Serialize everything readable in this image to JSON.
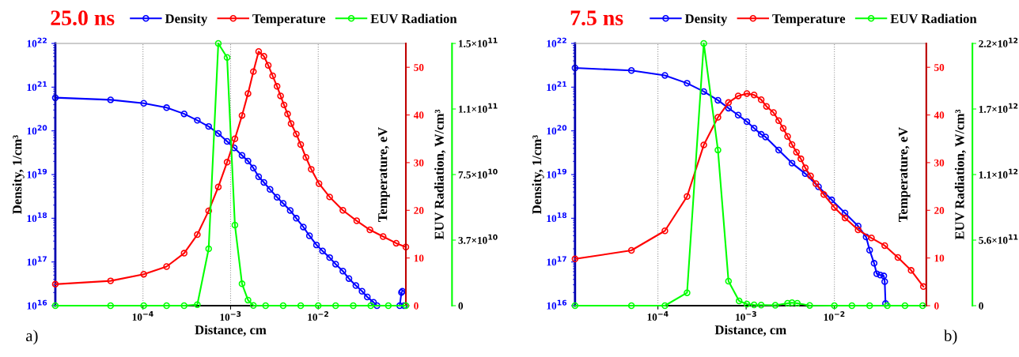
{
  "chart_data": [
    {
      "type": "line",
      "title": "25.0 ns",
      "xlabel": "Distance, cm",
      "ylabel": "Density, 1/cm³",
      "y2label": "Temperature, eV",
      "y3label": "EUV Radiation, W/cm³",
      "log": "xy",
      "grid": "x",
      "legend": "top",
      "marker": "circle",
      "line_style": "solid",
      "xlim": [
        1e-05,
        0.1
      ],
      "xticks": [
        {
          "value": 0.0001,
          "label": "10$^{−4}$"
        },
        {
          "value": 0.001,
          "label": "10$^{−3}$"
        },
        {
          "value": 0.01,
          "label": "10$^{−2}$"
        }
      ],
      "ylim": [
        1e+16,
        1e+22
      ],
      "yticks": [
        {
          "value": 1e+16,
          "label": "10$^{16}$"
        },
        {
          "value": 1e+17,
          "label": "10$^{17}$"
        },
        {
          "value": 1e+18,
          "label": "10$^{18}$"
        },
        {
          "value": 1e+19,
          "label": "10$^{19}$"
        },
        {
          "value": 1e+20,
          "label": "10$^{20}$"
        },
        {
          "value": 1e+21,
          "label": "10$^{21}$"
        },
        {
          "value": 1e+22,
          "label": "10$^{22}$"
        }
      ],
      "y2lim": [
        0,
        55
      ],
      "y2ticks": [
        0,
        10,
        20,
        30,
        40,
        50
      ],
      "y3lim": [
        0,
        150000000000.0
      ],
      "y3ticks": [
        0,
        {
          "value": 37500000000.0,
          "label": "3.7×10$^{10}$"
        },
        {
          "value": 75000000000.0,
          "label": "7.5×10$^{10}$"
        },
        {
          "value": 112500000000.0,
          "label": "1.1×10$^{11}$"
        },
        {
          "value": 150000000000.0,
          "label": "1.5×10$^{11}$"
        }
      ],
      "annotations": [
        "a)"
      ],
      "series": [
        {
          "name": "Density",
          "color": "#0000ff",
          "axis": "y",
          "x": [
            1e-05,
            4.27e-05,
            0.000102,
            0.000186,
            0.000295,
            0.000417,
            0.000562,
            0.000724,
            0.000912,
            0.0011,
            0.00135,
            0.00158,
            0.00182,
            0.00209,
            0.0024,
            0.00282,
            0.00339,
            0.00398,
            0.00479,
            0.00562,
            0.00676,
            0.00794,
            0.00955,
            0.0112,
            0.0135,
            0.0158,
            0.0191,
            0.0224,
            0.0269,
            0.0316,
            0.0363,
            0.0427,
            0.0468,
            0.0631,
            0.0851,
            0.0891,
            0.0912,
            0.0933,
            0.0955
          ],
          "values": [
            5.75e+20,
            5.13e+20,
            4.27e+20,
            3.39e+20,
            2.45e+20,
            1.74e+20,
            1.26e+20,
            8.71e+19,
            5.75e+19,
            4.07e+19,
            2.75e+19,
            2.04e+19,
            1.41e+19,
            8.91e+18,
            6.61e+18,
            4.57e+18,
            3.02e+18,
            2.19e+18,
            1.51e+18,
            1e+18,
            6.31e+17,
            3.98e+17,
            2.45e+17,
            1.78e+17,
            1.26e+17,
            8.91e+16,
            6.17e+16,
            4.17e+16,
            2.88e+16,
            2.14e+16,
            1.58e+16,
            1.2e+16,
            1e+16,
            null,
            1e+16,
            2e+16,
            2.14e+16,
            null,
            1e+16
          ]
        },
        {
          "name": "Temperature",
          "color": "#ff0000",
          "axis": "y2",
          "x": [
            1e-05,
            4.27e-05,
            0.000102,
            0.000186,
            0.000295,
            0.000417,
            0.000562,
            0.000724,
            0.000912,
            0.00112,
            0.00135,
            0.00158,
            0.00182,
            0.00209,
            0.0024,
            0.00269,
            0.00302,
            0.00339,
            0.00372,
            0.00407,
            0.00447,
            0.0049,
            0.00562,
            0.00631,
            0.00724,
            0.00832,
            0.0102,
            0.0135,
            0.0191,
            0.0275,
            0.0389,
            0.055,
            0.0776,
            0.1
          ],
          "values": [
            4.5,
            5.2,
            6.6,
            8.2,
            11.0,
            14.9,
            19.9,
            24.9,
            30.1,
            35.0,
            39.9,
            44.5,
            49.1,
            53.3,
            52.3,
            50.4,
            48.2,
            46.0,
            44.0,
            42.1,
            40.2,
            38.2,
            36.0,
            33.8,
            31.1,
            28.6,
            25.6,
            22.8,
            20.0,
            17.8,
            15.9,
            14.5,
            13.1,
            12.3
          ]
        },
        {
          "name": "EUV Radiation",
          "color": "#00ff00",
          "axis": "y3",
          "x": [
            1e-05,
            4.27e-05,
            0.000102,
            0.000186,
            0.000295,
            0.000417,
            0.000562,
            0.000724,
            0.000912,
            0.00112,
            0.00135,
            0.00158,
            0.00182,
            0.00251,
            0.00398,
            0.00631,
            0.01,
            0.0158,
            0.0251,
            0.0398,
            0.0631,
            0.1
          ],
          "values": [
            0,
            0,
            0,
            0,
            0,
            600000000.0,
            32500000000.0,
            150000000000.0,
            142000000000.0,
            46100000000.0,
            12500000000.0,
            3200000000.0,
            100000000.0,
            0,
            0,
            0,
            0,
            0,
            0,
            0,
            0,
            0
          ]
        }
      ]
    },
    {
      "type": "line",
      "title": "7.5 ns",
      "xlabel": "Distance, cm",
      "ylabel": "Density, 1/cm³",
      "y2label": "Temperature, eV",
      "y3label": "EUV Radiation, W/cm³",
      "log": "xy",
      "grid": "x",
      "legend": "top",
      "marker": "circle",
      "line_style": "solid",
      "xlim": [
        1.15e-05,
        0.11
      ],
      "xticks": [
        {
          "value": 0.0001,
          "label": "10$^{−4}$"
        },
        {
          "value": 0.001,
          "label": "10$^{−3}$"
        },
        {
          "value": 0.01,
          "label": "10$^{−2}$"
        }
      ],
      "ylim": [
        1e+16,
        1e+22
      ],
      "yticks": [
        {
          "value": 1e+16,
          "label": "10$^{16}$"
        },
        {
          "value": 1e+17,
          "label": "10$^{17}$"
        },
        {
          "value": 1e+18,
          "label": "10$^{18}$"
        },
        {
          "value": 1e+19,
          "label": "10$^{19}$"
        },
        {
          "value": 1e+20,
          "label": "10$^{20}$"
        },
        {
          "value": 1e+21,
          "label": "10$^{21}$"
        },
        {
          "value": 1e+22,
          "label": "10$^{22}$"
        }
      ],
      "y2lim": [
        0,
        55
      ],
      "y2ticks": [
        0,
        10,
        20,
        30,
        40,
        50
      ],
      "y3lim": [
        0,
        2240000000000.0
      ],
      "y3ticks": [
        0,
        {
          "value": 560000000000.0,
          "label": "5.6×10$^{11}$"
        },
        {
          "value": 1120000000000.0,
          "label": "1.1×10$^{12}$"
        },
        {
          "value": 1680000000000.0,
          "label": "1.7×10$^{12}$"
        },
        {
          "value": 2240000000000.0,
          "label": "2.2×10$^{12}$"
        }
      ],
      "annotations": [
        "b)"
      ],
      "series": [
        {
          "name": "Density",
          "color": "#0000ff",
          "axis": "y",
          "x": [
            1.15e-05,
            5.01e-05,
            0.00012,
            0.000214,
            0.000331,
            0.000479,
            0.000631,
            0.000813,
            0.00102,
            0.00123,
            0.00148,
            0.00166,
            0.00234,
            0.00331,
            0.00468,
            0.00661,
            0.00933,
            0.0132,
            0.0186,
            0.0229,
            0.0251,
            0.0282,
            0.0302,
            0.0331,
            0.0363,
            0.0372,
            0.038
          ],
          "values": [
            2.75e+21,
            2.4e+21,
            1.86e+21,
            1.23e+21,
            7.94e+20,
            5.01e+20,
            3.31e+20,
            2.29e+20,
            1.62e+20,
            1.15e+20,
            8.32e+19,
            7.24e+19,
            3.63e+19,
            1.82e+19,
            1.05e+19,
            5.25e+18,
            2.63e+18,
            1.32e+18,
            6.61e+17,
            3.72e+17,
            1.86e+17,
            9.33e+16,
            5.37e+16,
            5.01e+16,
            4.79e+16,
            3.55e+16,
            1.12e+16
          ]
        },
        {
          "name": "Temperature",
          "color": "#ff0000",
          "axis": "y2",
          "x": [
            1.15e-05,
            5.01e-05,
            0.00012,
            0.000214,
            0.000331,
            0.000479,
            0.000631,
            0.000813,
            0.00102,
            0.00123,
            0.00148,
            0.0017,
            0.00204,
            0.00234,
            0.00263,
            0.00295,
            0.00331,
            0.00372,
            0.00417,
            0.00468,
            0.00537,
            0.00617,
            0.00759,
            0.01,
            0.0132,
            0.0186,
            0.0263,
            0.0372,
            0.0525,
            0.0741,
            0.102
          ],
          "values": [
            9.8,
            11.6,
            15.7,
            22.9,
            33.7,
            39.5,
            42.6,
            44.0,
            44.5,
            44.2,
            43.2,
            41.8,
            40.5,
            38.8,
            37.2,
            35.5,
            33.8,
            32.2,
            30.8,
            28.9,
            27.2,
            25.6,
            23.3,
            20.6,
            18.4,
            15.9,
            14.2,
            12.6,
            10.1,
            7.4,
            4.0
          ]
        },
        {
          "name": "EUV Radiation",
          "color": "#00ff00",
          "axis": "y3",
          "x": [
            1.15e-05,
            5.01e-05,
            0.00012,
            0.000214,
            0.000331,
            0.000479,
            0.000631,
            0.000832,
            0.00102,
            0.00123,
            0.00148,
            0.00214,
            0.00295,
            0.00331,
            0.0038,
            0.00525,
            0.01,
            0.0158,
            0.0251,
            0.0398,
            0.0631,
            0.1
          ],
          "values": [
            0,
            0,
            0,
            110000000000.0,
            2240000000000.0,
            1330000000000.0,
            209000000000.0,
            40000000000.0,
            13000000000.0,
            7000000000.0,
            5000000000.0,
            3000000000.0,
            20000000000.0,
            25000000000.0,
            20000000000.0,
            2000000000.0,
            0,
            0,
            0,
            0,
            0,
            0
          ]
        }
      ]
    }
  ]
}
